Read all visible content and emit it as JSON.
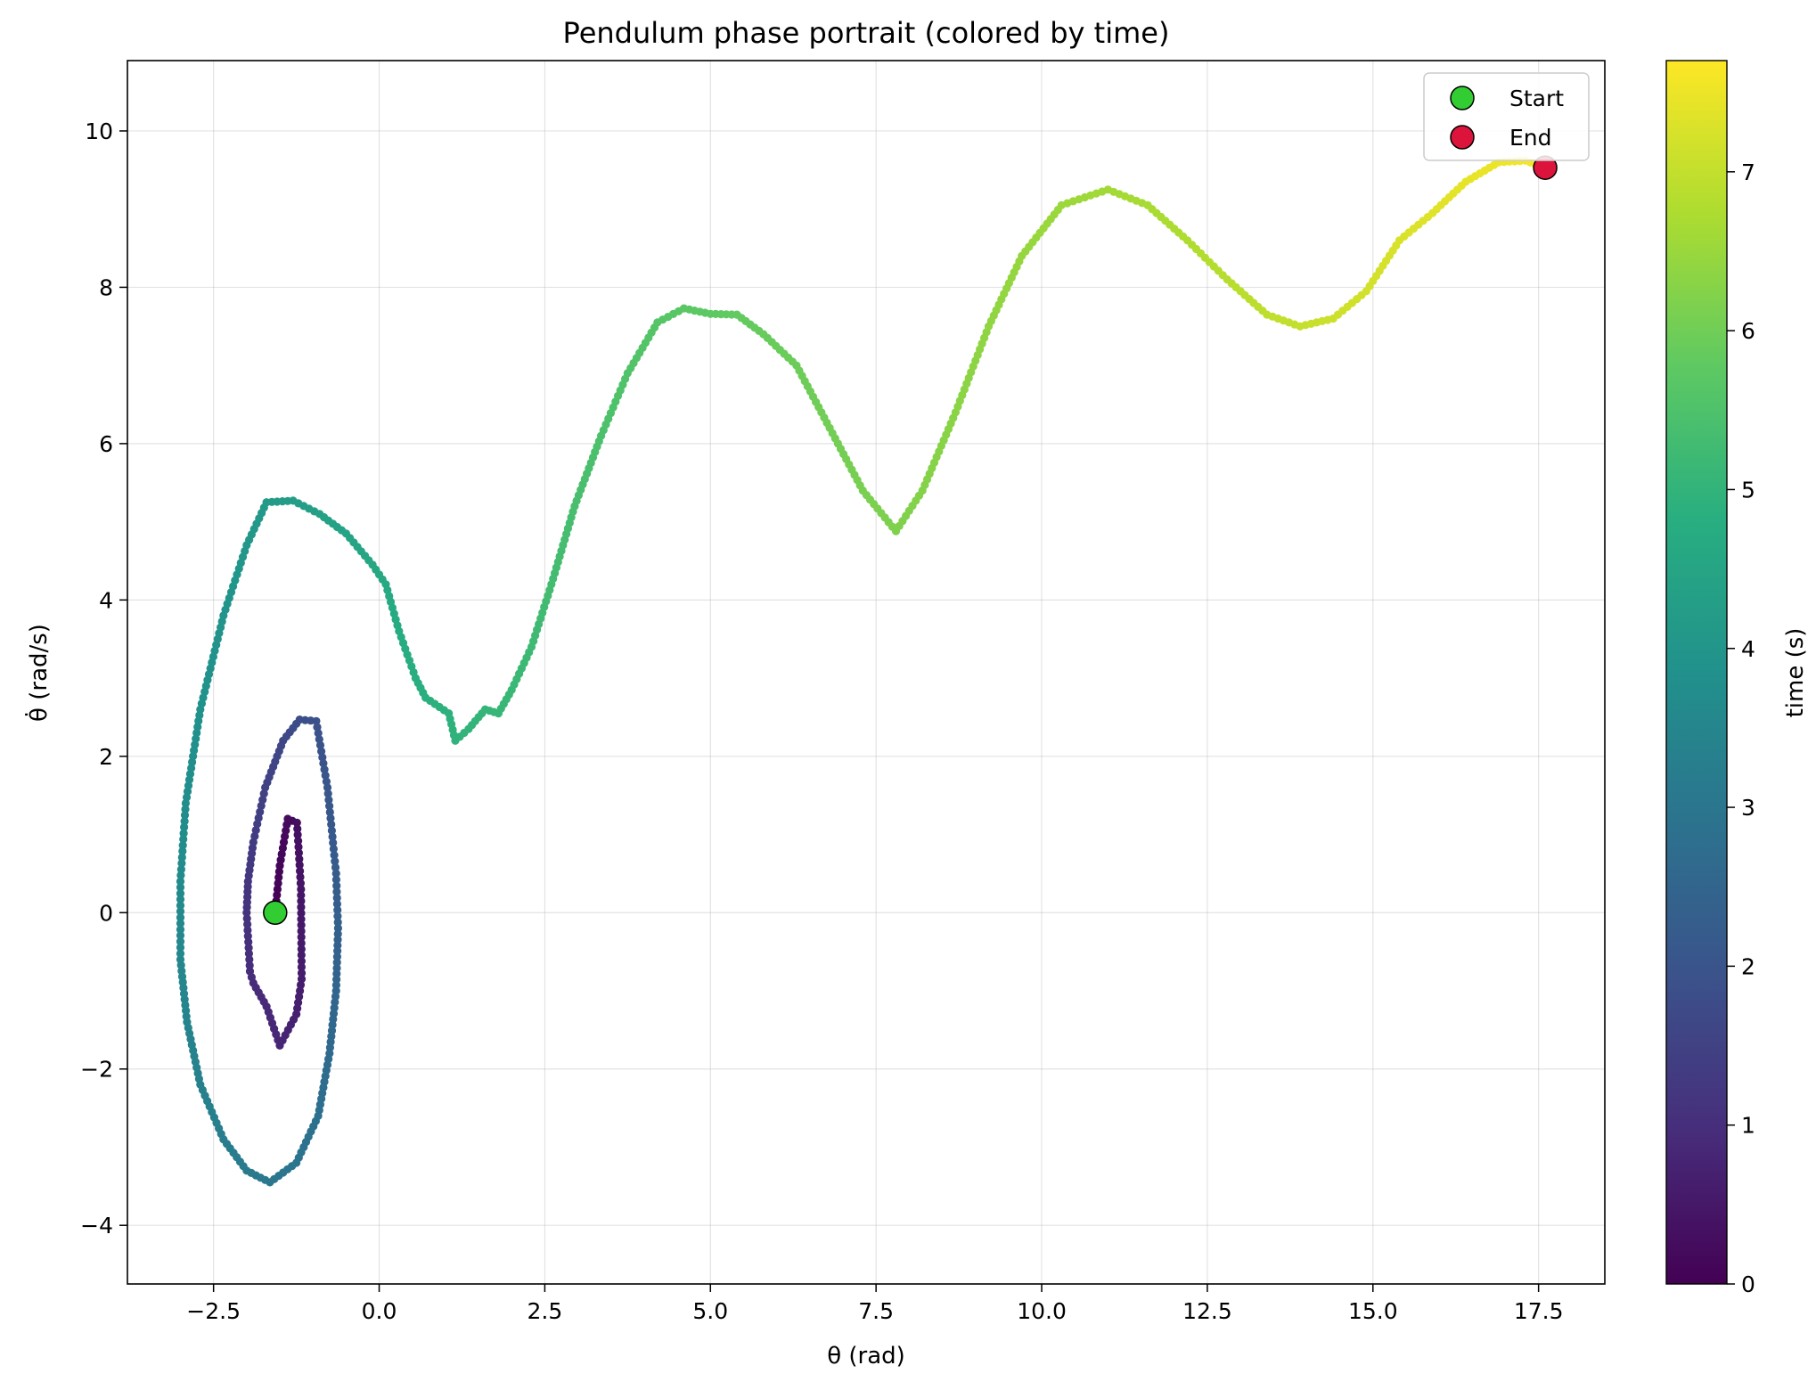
{
  "chart_data": {
    "type": "scatter",
    "title": "Pendulum phase portrait (colored by time)",
    "xlabel": "θ (rad)",
    "ylabel": "θ̇ (rad/s)",
    "xlim": [
      -3.8,
      18.5
    ],
    "ylim": [
      -4.75,
      10.9
    ],
    "xticks": [
      -2.5,
      0.0,
      2.5,
      5.0,
      7.5,
      10.0,
      12.5,
      15.0,
      17.5
    ],
    "xtick_labels": [
      "−2.5",
      "0.0",
      "2.5",
      "5.0",
      "7.5",
      "10.0",
      "12.5",
      "15.0",
      "17.5"
    ],
    "yticks": [
      -4,
      -2,
      0,
      2,
      4,
      6,
      8,
      10
    ],
    "ytick_labels": [
      "−4",
      "−2",
      "0",
      "2",
      "4",
      "6",
      "8",
      "10"
    ],
    "grid": true,
    "colormap": "viridis",
    "colorbar": {
      "label": "time (s)",
      "range": [
        0,
        7.7
      ],
      "ticks": [
        0,
        1,
        2,
        3,
        4,
        5,
        6,
        7
      ],
      "tick_labels": [
        "0",
        "1",
        "2",
        "3",
        "4",
        "5",
        "6",
        "7"
      ]
    },
    "legend": {
      "position": "upper-right",
      "entries": [
        {
          "label": "Start",
          "color": "#32cd32"
        },
        {
          "label": "End",
          "color": "#dc143c"
        }
      ]
    },
    "markers": {
      "start": {
        "x": -1.57,
        "y": 0.0
      },
      "end": {
        "x": 17.6,
        "y": 9.53
      }
    },
    "trajectory": [
      {
        "t": 0.0,
        "x": -1.57,
        "y": 0.0
      },
      {
        "t": 0.1,
        "x": -1.5,
        "y": 0.6
      },
      {
        "t": 0.2,
        "x": -1.38,
        "y": 1.2
      },
      {
        "t": 0.3,
        "x": -1.24,
        "y": 1.15
      },
      {
        "t": 0.45,
        "x": -1.18,
        "y": 0.3
      },
      {
        "t": 0.6,
        "x": -1.17,
        "y": -0.85
      },
      {
        "t": 0.7,
        "x": -1.25,
        "y": -1.3
      },
      {
        "t": 0.8,
        "x": -1.5,
        "y": -1.7
      },
      {
        "t": 0.9,
        "x": -1.7,
        "y": -1.2
      },
      {
        "t": 0.95,
        "x": -1.9,
        "y": -0.9
      },
      {
        "t": 1.0,
        "x": -1.95,
        "y": -0.75
      },
      {
        "t": 1.1,
        "x": -2.0,
        "y": 0.0
      },
      {
        "t": 1.2,
        "x": -1.98,
        "y": 0.4
      },
      {
        "t": 1.35,
        "x": -1.9,
        "y": 0.9
      },
      {
        "t": 1.5,
        "x": -1.72,
        "y": 1.6
      },
      {
        "t": 1.65,
        "x": -1.45,
        "y": 2.2
      },
      {
        "t": 1.8,
        "x": -1.2,
        "y": 2.47
      },
      {
        "t": 1.9,
        "x": -0.95,
        "y": 2.45
      },
      {
        "t": 2.05,
        "x": -0.78,
        "y": 1.6
      },
      {
        "t": 2.2,
        "x": -0.65,
        "y": 0.5
      },
      {
        "t": 2.35,
        "x": -0.62,
        "y": -0.2
      },
      {
        "t": 2.5,
        "x": -0.65,
        "y": -1.0
      },
      {
        "t": 2.65,
        "x": -0.75,
        "y": -1.8
      },
      {
        "t": 2.8,
        "x": -0.92,
        "y": -2.6
      },
      {
        "t": 2.95,
        "x": -1.25,
        "y": -3.2
      },
      {
        "t": 3.05,
        "x": -1.65,
        "y": -3.45
      },
      {
        "t": 3.15,
        "x": -2.0,
        "y": -3.3
      },
      {
        "t": 3.25,
        "x": -2.35,
        "y": -2.9
      },
      {
        "t": 3.35,
        "x": -2.7,
        "y": -2.2
      },
      {
        "t": 3.45,
        "x": -2.9,
        "y": -1.4
      },
      {
        "t": 3.55,
        "x": -3.0,
        "y": -0.6
      },
      {
        "t": 3.65,
        "x": -3.0,
        "y": 0.4
      },
      {
        "t": 3.75,
        "x": -2.92,
        "y": 1.4
      },
      {
        "t": 3.85,
        "x": -2.7,
        "y": 2.6
      },
      {
        "t": 3.95,
        "x": -2.35,
        "y": 3.8
      },
      {
        "t": 4.05,
        "x": -2.0,
        "y": 4.7
      },
      {
        "t": 4.15,
        "x": -1.7,
        "y": 5.25
      },
      {
        "t": 4.25,
        "x": -1.3,
        "y": 5.27
      },
      {
        "t": 4.35,
        "x": -0.9,
        "y": 5.1
      },
      {
        "t": 4.45,
        "x": -0.5,
        "y": 4.85
      },
      {
        "t": 4.55,
        "x": -0.1,
        "y": 4.45
      },
      {
        "t": 4.65,
        "x": 0.1,
        "y": 4.2
      },
      {
        "t": 4.72,
        "x": 0.3,
        "y": 3.6
      },
      {
        "t": 4.8,
        "x": 0.55,
        "y": 3.0
      },
      {
        "t": 4.85,
        "x": 0.7,
        "y": 2.75
      },
      {
        "t": 4.9,
        "x": 1.05,
        "y": 2.55
      },
      {
        "t": 4.95,
        "x": 1.15,
        "y": 2.2
      },
      {
        "t": 5.0,
        "x": 1.35,
        "y": 2.35
      },
      {
        "t": 5.05,
        "x": 1.6,
        "y": 2.6
      },
      {
        "t": 5.1,
        "x": 1.8,
        "y": 2.55
      },
      {
        "t": 5.15,
        "x": 2.0,
        "y": 2.85
      },
      {
        "t": 5.22,
        "x": 2.3,
        "y": 3.4
      },
      {
        "t": 5.3,
        "x": 2.6,
        "y": 4.2
      },
      {
        "t": 5.38,
        "x": 2.95,
        "y": 5.2
      },
      {
        "t": 5.46,
        "x": 3.35,
        "y": 6.1
      },
      {
        "t": 5.54,
        "x": 3.75,
        "y": 6.9
      },
      {
        "t": 5.62,
        "x": 4.2,
        "y": 7.55
      },
      {
        "t": 5.7,
        "x": 4.6,
        "y": 7.73
      },
      {
        "t": 5.76,
        "x": 5.0,
        "y": 7.66
      },
      {
        "t": 5.82,
        "x": 5.4,
        "y": 7.65
      },
      {
        "t": 5.88,
        "x": 5.8,
        "y": 7.4
      },
      {
        "t": 5.95,
        "x": 6.3,
        "y": 7.0
      },
      {
        "t": 6.02,
        "x": 6.8,
        "y": 6.2
      },
      {
        "t": 6.1,
        "x": 7.3,
        "y": 5.4
      },
      {
        "t": 6.17,
        "x": 7.8,
        "y": 4.88
      },
      {
        "t": 6.24,
        "x": 8.2,
        "y": 5.4
      },
      {
        "t": 6.31,
        "x": 8.7,
        "y": 6.4
      },
      {
        "t": 6.38,
        "x": 9.2,
        "y": 7.5
      },
      {
        "t": 6.45,
        "x": 9.7,
        "y": 8.4
      },
      {
        "t": 6.52,
        "x": 10.3,
        "y": 9.05
      },
      {
        "t": 6.6,
        "x": 11.0,
        "y": 9.25
      },
      {
        "t": 6.68,
        "x": 11.6,
        "y": 9.05
      },
      {
        "t": 6.76,
        "x": 12.2,
        "y": 8.6
      },
      {
        "t": 6.85,
        "x": 12.8,
        "y": 8.1
      },
      {
        "t": 6.94,
        "x": 13.4,
        "y": 7.65
      },
      {
        "t": 7.02,
        "x": 13.9,
        "y": 7.5
      },
      {
        "t": 7.1,
        "x": 14.4,
        "y": 7.6
      },
      {
        "t": 7.18,
        "x": 14.9,
        "y": 7.95
      },
      {
        "t": 7.26,
        "x": 15.4,
        "y": 8.6
      },
      {
        "t": 7.34,
        "x": 15.9,
        "y": 8.95
      },
      {
        "t": 7.42,
        "x": 16.4,
        "y": 9.35
      },
      {
        "t": 7.5,
        "x": 16.9,
        "y": 9.6
      },
      {
        "t": 7.58,
        "x": 17.3,
        "y": 9.62
      },
      {
        "t": 7.65,
        "x": 17.6,
        "y": 9.53
      }
    ]
  }
}
